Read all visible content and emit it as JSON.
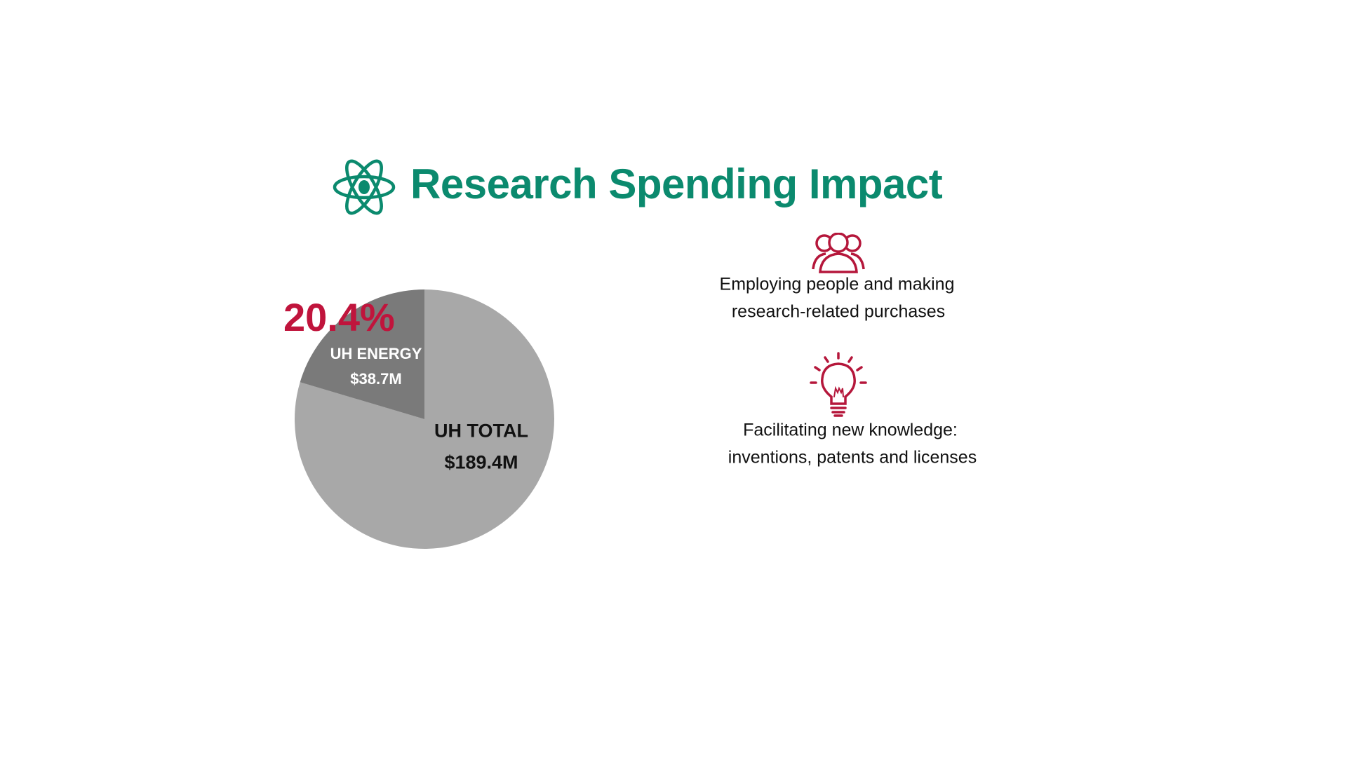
{
  "title": "Research Spending Impact",
  "colors": {
    "title": "#0b8a6e",
    "accent": "#c0143c",
    "total_slice": "#a8a8a8",
    "energy_slice": "#7a7a7a"
  },
  "icons": {
    "title": "atom-icon",
    "item1": "people-group-icon",
    "item2": "lightbulb-icon"
  },
  "chart_data": {
    "type": "pie",
    "slices": [
      {
        "name": "UH ENERGY",
        "value": 38.7,
        "label": "$38.7M",
        "color": "#7a7a7a"
      },
      {
        "name": "UH TOTAL",
        "value": 189.4,
        "label": "$189.4M",
        "color": "#a8a8a8"
      }
    ],
    "energy_share_percent": 20.4,
    "annotation": "20.4%"
  },
  "items": [
    {
      "line1": "Employing people and making",
      "line2": "research-related purchases"
    },
    {
      "line1": "Facilitating new knowledge:",
      "line2": "inventions, patents and licenses"
    }
  ]
}
